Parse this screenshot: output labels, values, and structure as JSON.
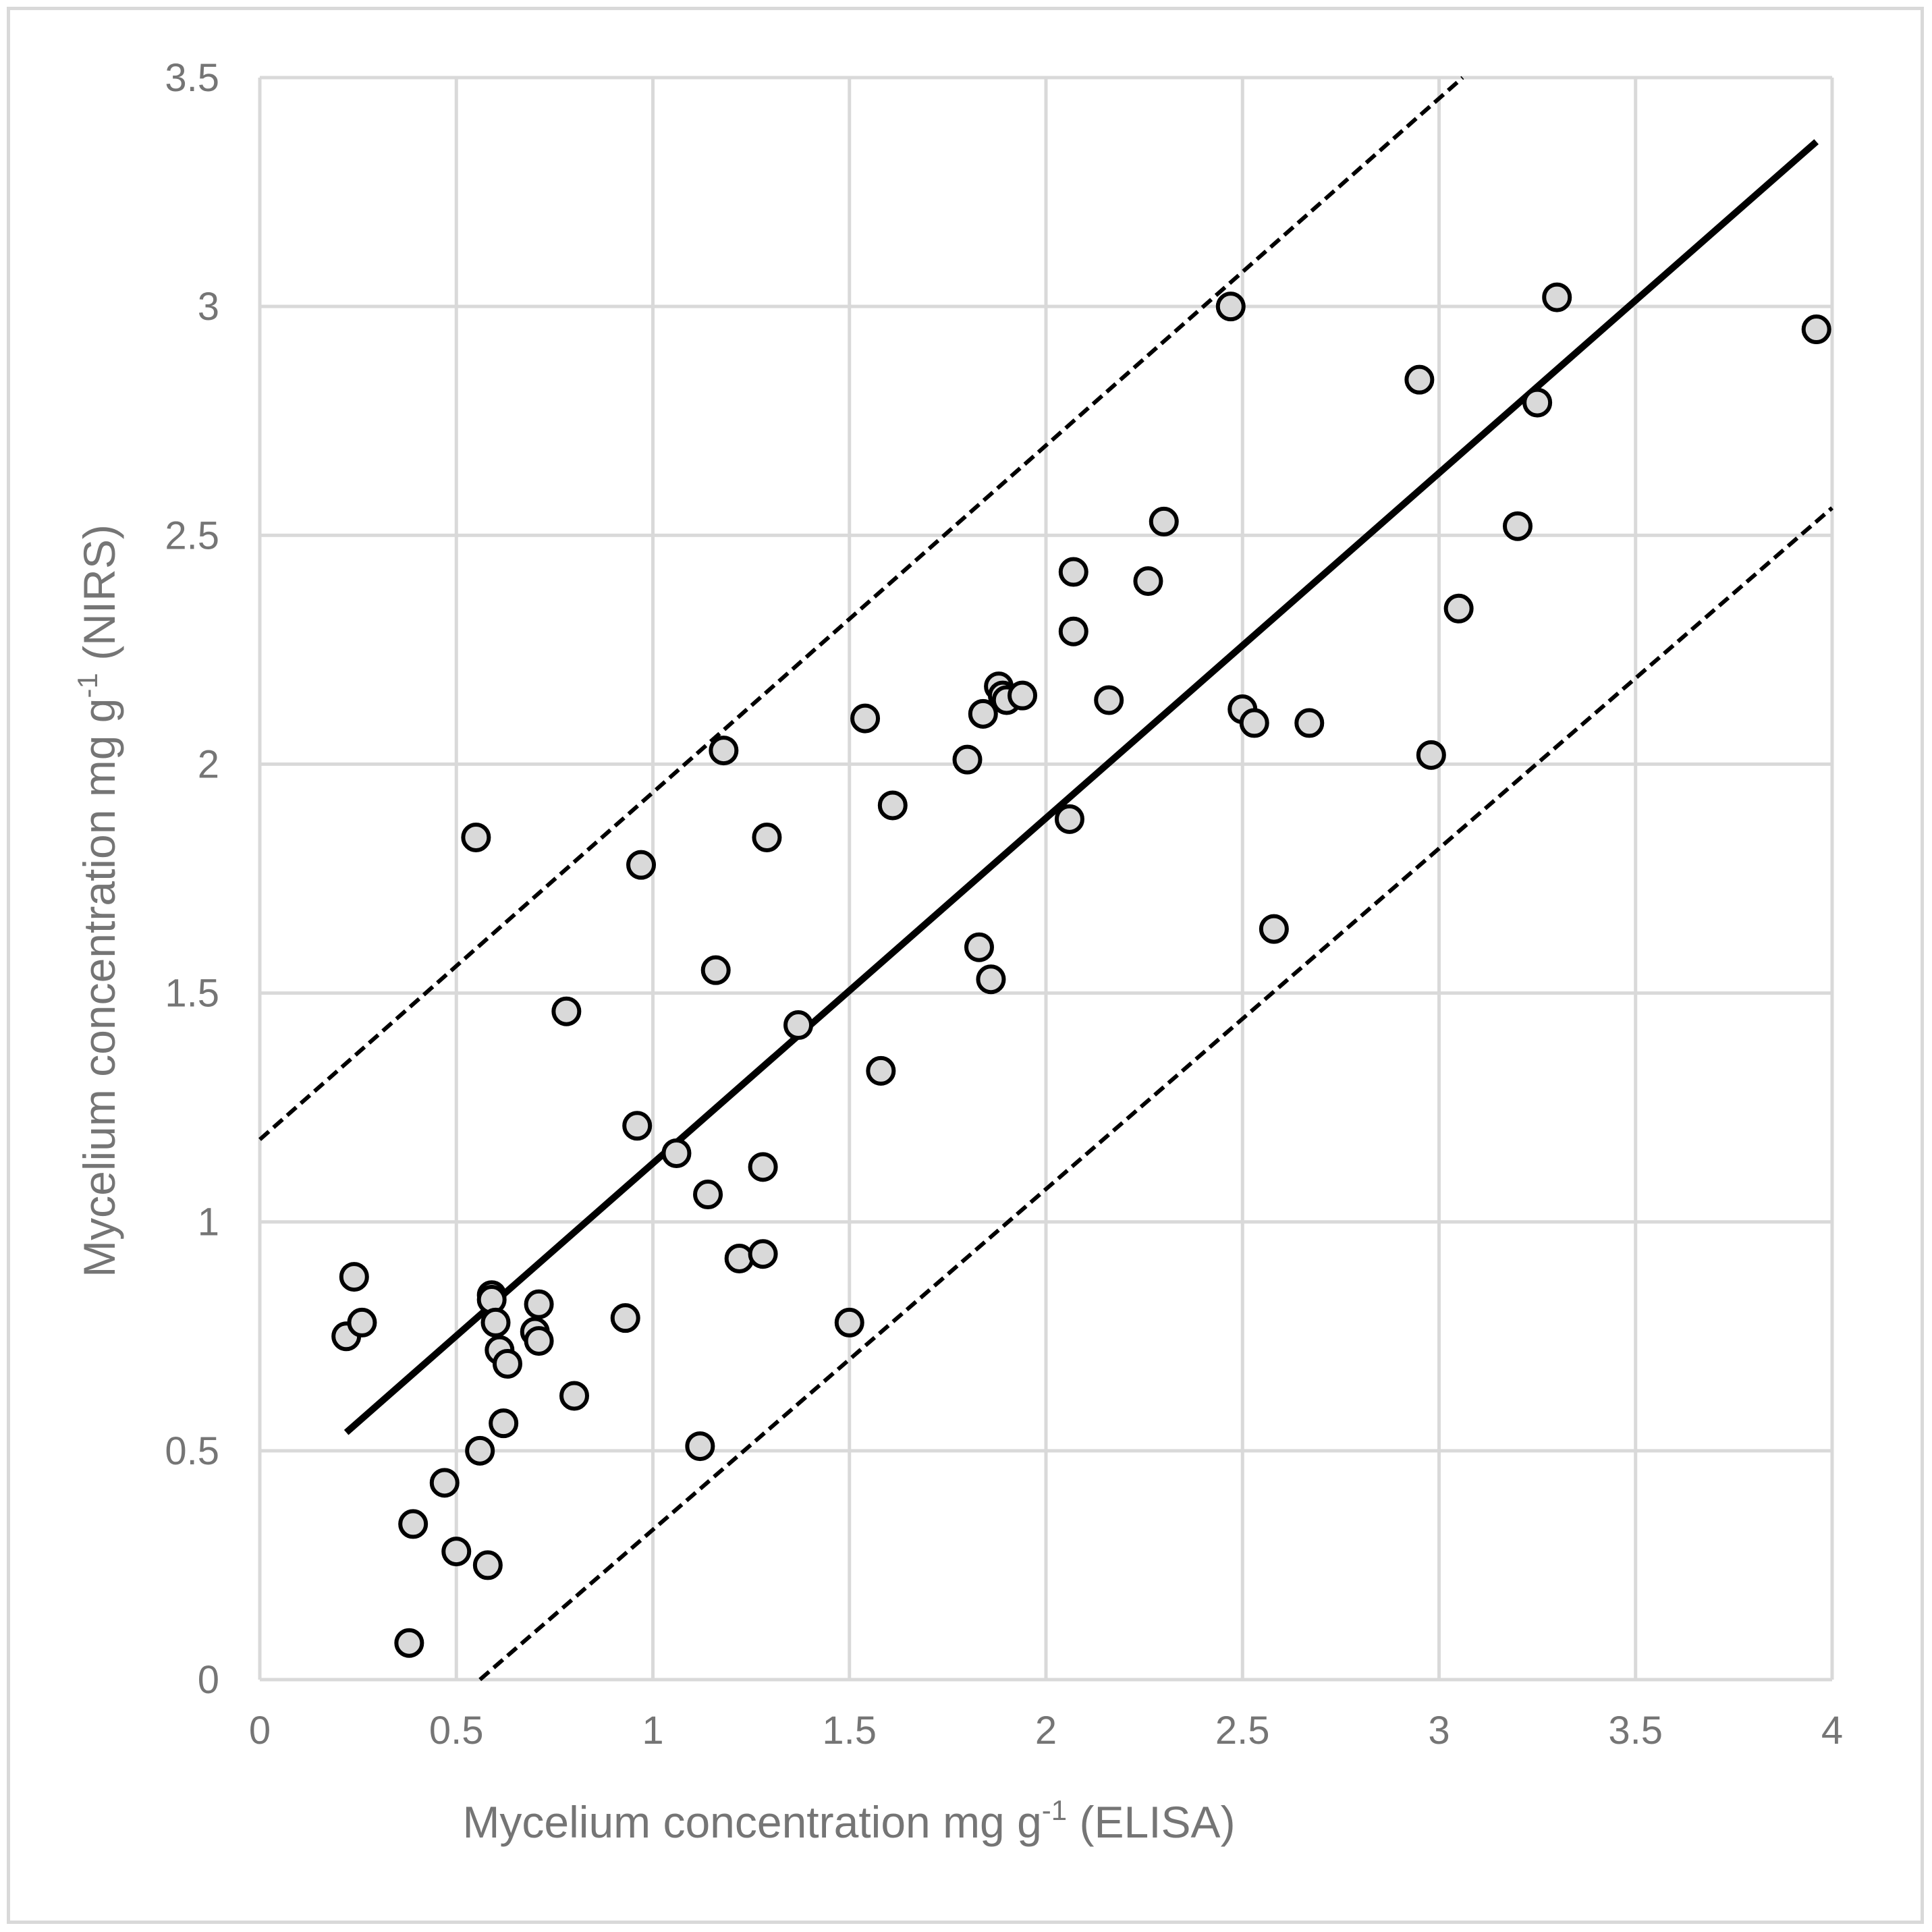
{
  "chart_data": {
    "type": "scatter",
    "title": "",
    "xlabel_main": "Mycelium concentration mg g",
    "xlabel_sup": "-1",
    "xlabel_tail": " (ELISA)",
    "ylabel_main": "Mycelium  concentration mg g",
    "ylabel_sup": "-1",
    "ylabel_tail": " (NIRS)",
    "xlim": [
      0,
      4
    ],
    "ylim": [
      0,
      3.5
    ],
    "x_ticks": [
      0,
      0.5,
      1,
      1.5,
      2,
      2.5,
      3,
      3.5,
      4
    ],
    "y_ticks": [
      0,
      0.5,
      1,
      1.5,
      2,
      2.5,
      3,
      3.5
    ],
    "x_tick_labels": [
      "0",
      "0.5",
      "1",
      "1.5",
      "2",
      "2.5",
      "3",
      "3.5",
      "4"
    ],
    "y_tick_labels": [
      "0",
      "0.5",
      "1",
      "1.5",
      "2",
      "2.5",
      "3",
      "3.5"
    ],
    "grid": true,
    "series": [
      {
        "name": "samples",
        "kind": "points",
        "x": [
          0.22,
          0.24,
          0.26,
          0.38,
          0.39,
          0.47,
          0.5,
          0.55,
          0.56,
          0.58,
          0.59,
          0.59,
          0.6,
          0.61,
          0.62,
          0.63,
          0.7,
          0.71,
          0.71,
          0.78,
          0.8,
          0.93,
          0.96,
          0.97,
          1.06,
          1.12,
          1.14,
          1.16,
          1.18,
          1.22,
          1.28,
          1.28,
          1.29,
          1.37,
          1.5,
          1.54,
          1.58,
          1.61,
          1.8,
          1.83,
          1.84,
          1.86,
          1.88,
          1.89,
          1.9,
          1.94,
          2.06,
          2.07,
          2.07,
          2.16,
          2.26,
          2.3,
          2.47,
          2.5,
          2.53,
          2.58,
          2.67,
          2.95,
          2.98,
          3.05,
          3.2,
          3.25,
          3.3,
          3.96
        ],
        "y": [
          0.75,
          0.88,
          0.78,
          0.08,
          0.34,
          0.43,
          0.28,
          1.84,
          0.5,
          0.25,
          0.84,
          0.83,
          0.78,
          0.72,
          0.56,
          0.69,
          0.76,
          0.74,
          0.82,
          1.46,
          0.62,
          0.79,
          1.21,
          1.78,
          1.15,
          0.51,
          1.06,
          1.55,
          2.03,
          0.92,
          1.12,
          0.93,
          1.84,
          1.43,
          0.78,
          2.1,
          1.33,
          1.91,
          2.01,
          1.6,
          2.11,
          1.53,
          2.17,
          2.15,
          2.14,
          2.15,
          1.88,
          2.42,
          2.29,
          2.14,
          2.4,
          2.53,
          3.0,
          2.12,
          2.09,
          1.64,
          2.09,
          2.84,
          2.02,
          2.34,
          2.52,
          2.79,
          3.02,
          2.95
        ]
      },
      {
        "name": "regression line",
        "kind": "solid-line",
        "x": [
          0.22,
          3.96
        ],
        "y": [
          0.54,
          3.36
        ]
      },
      {
        "name": "upper bound",
        "kind": "dashed-line",
        "x": [
          0.0,
          3.06
        ],
        "y": [
          1.18,
          3.5
        ]
      },
      {
        "name": "lower bound",
        "kind": "dashed-line",
        "x": [
          0.56,
          4.0
        ],
        "y": [
          0.0,
          2.56
        ]
      }
    ]
  }
}
